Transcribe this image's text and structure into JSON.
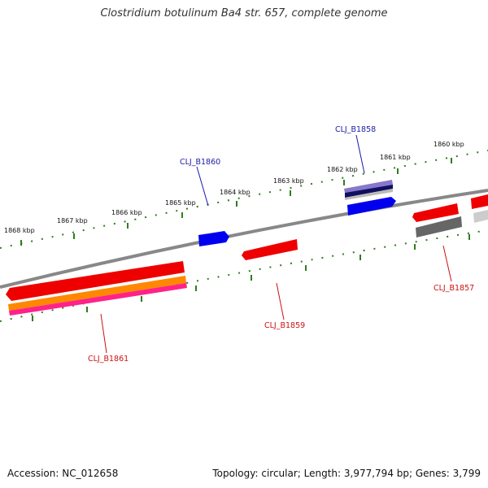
{
  "title": "Clostridium botulinum Ba4 str. 657, complete genome",
  "footer": {
    "accession": "Accession: NC_012658",
    "summary": "Topology: circular; Length: 3,977,794 bp; Genes: 3,799"
  },
  "kbp_labels": [
    "1868 kbp",
    "1867 kbp",
    "1866 kbp",
    "1865 kbp",
    "1864 kbp",
    "1863 kbp",
    "1862 kbp",
    "1861 kbp",
    "1860 kbp"
  ],
  "gene_labels": {
    "b1860": "CLJ_B1860",
    "b1858": "CLJ_B1858",
    "b1857": "CLJ_B1857",
    "b1859": "CLJ_B1859",
    "b1861": "CLJ_B1861"
  },
  "colors": {
    "backbone": "#888888",
    "tick": "#2e7d1e",
    "forward_label": "#1a1aaa",
    "reverse_label": "#cc1111",
    "blue": "#0000ee",
    "red": "#ee0000",
    "orange": "#ff8800",
    "magenta": "#ff2288",
    "gray": "#666666",
    "navy": "#101060",
    "lavender": "#8877cc"
  }
}
